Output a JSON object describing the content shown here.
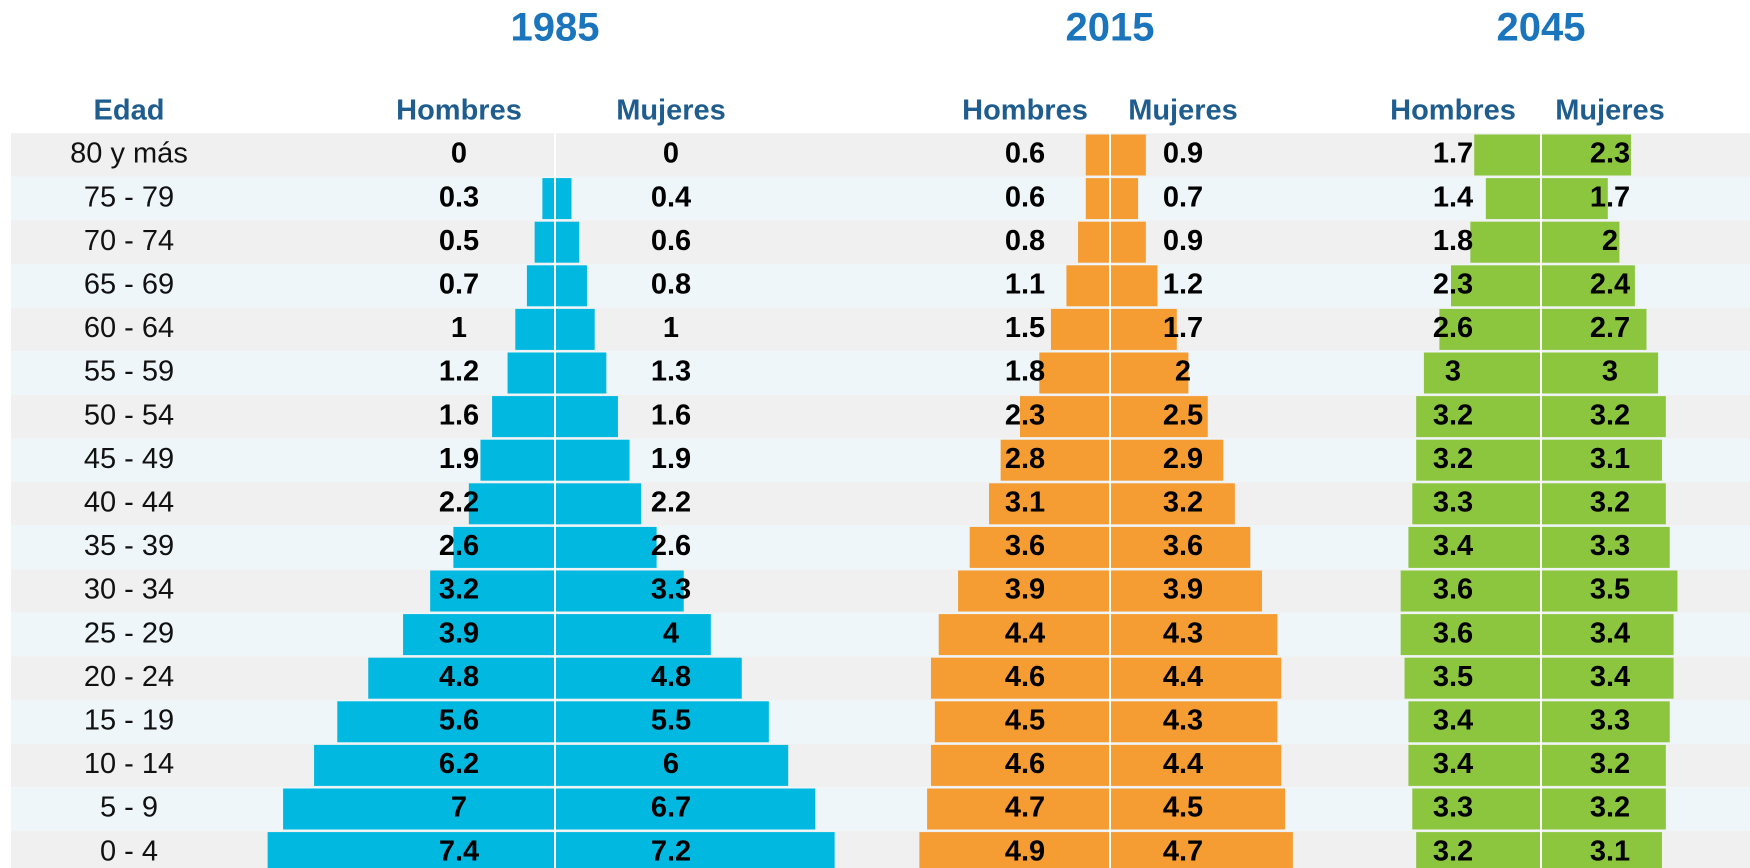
{
  "chart_data": {
    "type": "pyramid",
    "category_label": "Edad",
    "categories": [
      "80 y más",
      "75 - 79",
      "70 - 74",
      "65 - 69",
      "60 - 64",
      "55 - 59",
      "50 - 54",
      "45 - 49",
      "40 - 44",
      "35 - 39",
      "30 - 34",
      "25 - 29",
      "20 - 24",
      "15 - 19",
      "10 - 14",
      "5 - 9",
      "0 - 4"
    ],
    "panels": [
      {
        "title": "1985",
        "color": "#00b8e0",
        "series": [
          {
            "name": "Hombres",
            "values": [
              0,
              0.3,
              0.5,
              0.7,
              1,
              1.2,
              1.6,
              1.9,
              2.2,
              2.6,
              3.2,
              3.9,
              4.8,
              5.6,
              6.2,
              7,
              7.4
            ]
          },
          {
            "name": "Mujeres",
            "values": [
              0,
              0.4,
              0.6,
              0.8,
              1,
              1.3,
              1.6,
              1.9,
              2.2,
              2.6,
              3.3,
              4,
              4.8,
              5.5,
              6,
              6.7,
              7.2
            ]
          }
        ]
      },
      {
        "title": "2015",
        "color": "#f59c33",
        "series": [
          {
            "name": "Hombres",
            "values": [
              0.6,
              0.6,
              0.8,
              1.1,
              1.5,
              1.8,
              2.3,
              2.8,
              3.1,
              3.6,
              3.9,
              4.4,
              4.6,
              4.5,
              4.6,
              4.7,
              4.9
            ]
          },
          {
            "name": "Mujeres",
            "values": [
              0.9,
              0.7,
              0.9,
              1.2,
              1.7,
              2,
              2.5,
              2.9,
              3.2,
              3.6,
              3.9,
              4.3,
              4.4,
              4.3,
              4.4,
              4.5,
              4.7
            ]
          }
        ]
      },
      {
        "title": "2045",
        "color": "#8cc63f",
        "series": [
          {
            "name": "Hombres",
            "values": [
              1.7,
              1.4,
              1.8,
              2.3,
              2.6,
              3,
              3.2,
              3.2,
              3.3,
              3.4,
              3.6,
              3.6,
              3.5,
              3.4,
              3.4,
              3.3,
              3.2
            ]
          },
          {
            "name": "Mujeres",
            "values": [
              2.3,
              1.7,
              2,
              2.4,
              2.7,
              3,
              3.2,
              3.1,
              3.2,
              3.3,
              3.5,
              3.4,
              3.4,
              3.3,
              3.2,
              3.2,
              3.1
            ]
          }
        ]
      }
    ]
  }
}
